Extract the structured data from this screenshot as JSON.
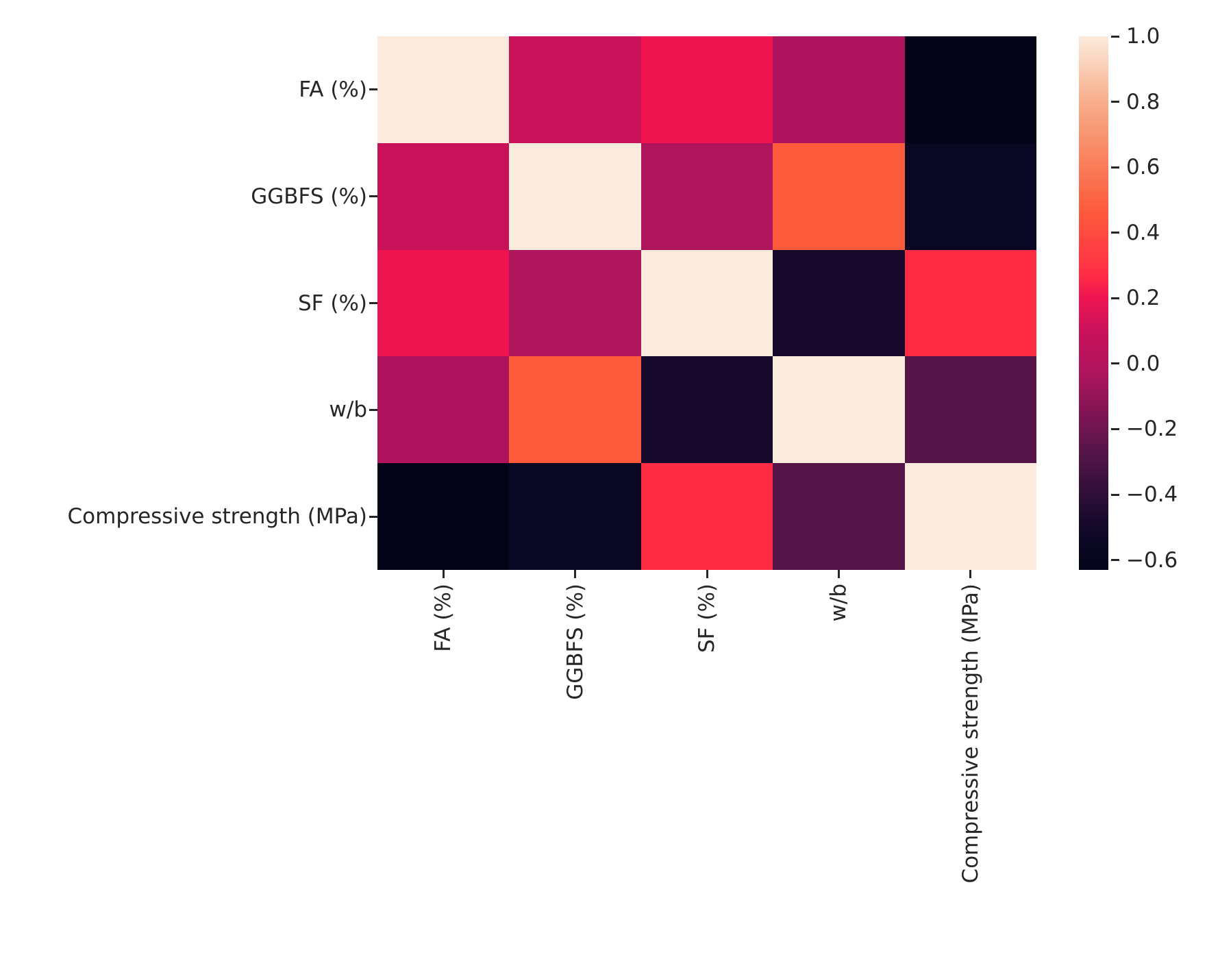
{
  "figure": {
    "background": "#ffffff",
    "text_color": "#262626"
  },
  "chart_data": {
    "type": "heatmap",
    "title": "",
    "description": "Correlation matrix heatmap of concrete mix variables vs compressive strength",
    "variables": [
      "FA (%)",
      "GGBFS (%)",
      "SF (%)",
      "w/b",
      "Compressive strength (MPa)"
    ],
    "x_tick_labels": [
      "FA (%)",
      "GGBFS (%)",
      "SF (%)",
      "w/b",
      "Compressive strength (MPa)"
    ],
    "y_tick_labels": [
      "FA (%)",
      "GGBFS (%)",
      "SF (%)",
      "w/b",
      "Compressive strength (MPa)"
    ],
    "matrix": [
      [
        1.0,
        0.1,
        0.2,
        -0.02,
        -0.63
      ],
      [
        0.1,
        1.0,
        -0.03,
        0.47,
        -0.55
      ],
      [
        0.2,
        -0.03,
        1.0,
        -0.48,
        0.27
      ],
      [
        -0.02,
        0.47,
        -0.48,
        1.0,
        -0.27
      ],
      [
        -0.63,
        -0.55,
        0.27,
        -0.27,
        1.0
      ]
    ],
    "cell_colors": [
      [
        "#FBEBDC",
        "#CA125A",
        "#EE1550",
        "#AE145D",
        "#030417"
      ],
      [
        "#CA125A",
        "#FBEBDC",
        "#AE155C",
        "#FD5A3C",
        "#0A0722"
      ],
      [
        "#EE1550",
        "#AE155C",
        "#FBEBDC",
        "#170A2C",
        "#FF2C46"
      ],
      [
        "#AE145D",
        "#FD5A3C",
        "#170A2C",
        "#FBEBDC",
        "#551549"
      ],
      [
        "#030417",
        "#0A0722",
        "#FF2C46",
        "#551549",
        "#FBEBDC"
      ]
    ],
    "colormap": "rocket",
    "grid": false,
    "colorbar": {
      "position": "right",
      "vmin": -0.63,
      "vmax": 1.0,
      "tick_values": [
        1.0,
        0.8,
        0.6,
        0.4,
        0.2,
        0.0,
        -0.2,
        -0.4,
        -0.6
      ],
      "tick_labels": [
        "1.0",
        "0.8",
        "0.6",
        "0.4",
        "0.2",
        "0.0",
        "−0.2",
        "−0.4",
        "−0.6"
      ],
      "gradient_stops": [
        {
          "pos": 0.0,
          "color": "#03051A"
        },
        {
          "pos": 0.05,
          "color": "#0A0722"
        },
        {
          "pos": 0.09,
          "color": "#170A2C"
        },
        {
          "pos": 0.22,
          "color": "#551549"
        },
        {
          "pos": 0.37,
          "color": "#AE145D"
        },
        {
          "pos": 0.45,
          "color": "#CA125A"
        },
        {
          "pos": 0.51,
          "color": "#EE1550"
        },
        {
          "pos": 0.55,
          "color": "#FF2C46"
        },
        {
          "pos": 0.67,
          "color": "#FD5A3C"
        },
        {
          "pos": 0.75,
          "color": "#F97A55"
        },
        {
          "pos": 0.88,
          "color": "#F8AF8C"
        },
        {
          "pos": 1.0,
          "color": "#FBEBDC"
        }
      ]
    }
  }
}
